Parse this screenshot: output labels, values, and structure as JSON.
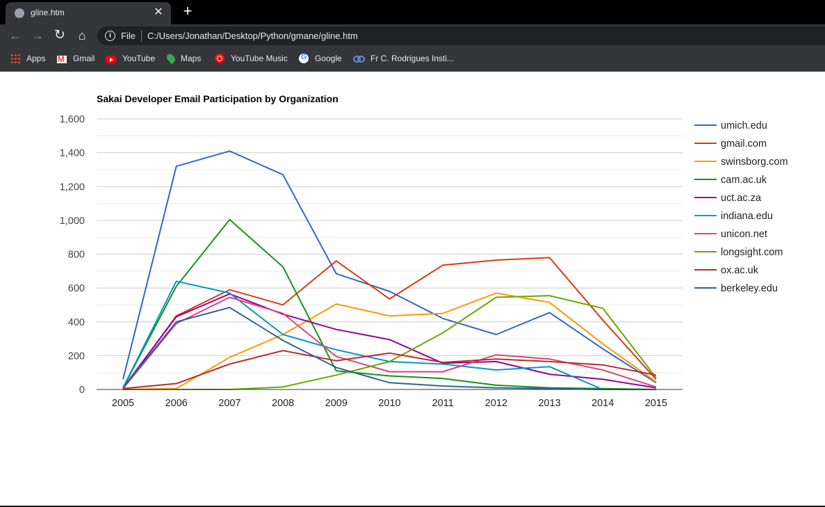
{
  "browser": {
    "tab_title": "gline.htm",
    "tab_close": "✕",
    "new_tab": "+",
    "scheme_label": "File",
    "url": "C:/Users/Jonathan/Desktop/Python/gmane/gline.htm",
    "nav": {
      "back": "←",
      "forward": "→",
      "reload": "↻",
      "home": "⌂",
      "info": "i"
    },
    "icons": {
      "tab_favicon": "globe-icon",
      "apps": "apps-grid-icon",
      "gmail": "gmail-icon",
      "youtube": "youtube-icon",
      "maps": "maps-pin-icon",
      "youtube_music": "youtube-music-icon",
      "google": "google-icon",
      "fr_c": "link-icon"
    },
    "bookmarks": [
      "Apps",
      "Gmail",
      "YouTube",
      "Maps",
      "YouTube Music",
      "Google",
      "Fr C. Rodrigues Insti..."
    ]
  },
  "chart_data": {
    "type": "line",
    "title": "Sakai Developer Email Participation by Organization",
    "xlabel": "",
    "ylabel": "",
    "x": [
      "2005",
      "2006",
      "2007",
      "2008",
      "2009",
      "2010",
      "2011",
      "2012",
      "2013",
      "2014",
      "2015"
    ],
    "ylim": [
      0,
      1600
    ],
    "yticks": [
      0,
      200,
      400,
      600,
      800,
      1000,
      1200,
      1400,
      1600
    ],
    "ytick_labels": [
      "0",
      "200",
      "400",
      "600",
      "800",
      "1,000",
      "1,200",
      "1,400",
      "1,600"
    ],
    "grid": true,
    "legend_position": "right",
    "series": [
      {
        "name": "umich.edu",
        "color": "#3366cc",
        "values": [
          60,
          1320,
          1410,
          1270,
          685,
          580,
          420,
          325,
          455,
          240,
          40
        ]
      },
      {
        "name": "gmail.com",
        "color": "#dc3912",
        "values": [
          5,
          435,
          590,
          500,
          760,
          535,
          735,
          765,
          780,
          410,
          60
        ]
      },
      {
        "name": "swinsborg.com",
        "color": "#ff9900",
        "values": [
          0,
          5,
          190,
          325,
          505,
          435,
          450,
          570,
          515,
          270,
          45
        ]
      },
      {
        "name": "cam.ac.uk",
        "color": "#109618",
        "values": [
          10,
          610,
          1005,
          725,
          110,
          80,
          65,
          25,
          10,
          5,
          0
        ]
      },
      {
        "name": "uct.ac.za",
        "color": "#990099",
        "values": [
          10,
          430,
          565,
          445,
          355,
          295,
          155,
          165,
          90,
          60,
          10
        ]
      },
      {
        "name": "indiana.edu",
        "color": "#0099c6",
        "values": [
          10,
          640,
          570,
          325,
          235,
          165,
          150,
          115,
          135,
          0,
          0
        ]
      },
      {
        "name": "unicon.net",
        "color": "#dd4477",
        "values": [
          5,
          390,
          545,
          450,
          195,
          105,
          105,
          205,
          180,
          115,
          15
        ]
      },
      {
        "name": "longsight.com",
        "color": "#66aa00",
        "values": [
          0,
          0,
          0,
          15,
          85,
          165,
          335,
          545,
          555,
          480,
          70
        ]
      },
      {
        "name": "ox.ac.uk",
        "color": "#b82e2e",
        "values": [
          5,
          35,
          150,
          230,
          170,
          215,
          160,
          180,
          165,
          145,
          85
        ]
      },
      {
        "name": "berkeley.edu",
        "color": "#316395",
        "values": [
          10,
          400,
          485,
          290,
          130,
          40,
          20,
          10,
          5,
          0,
          0
        ]
      }
    ]
  }
}
